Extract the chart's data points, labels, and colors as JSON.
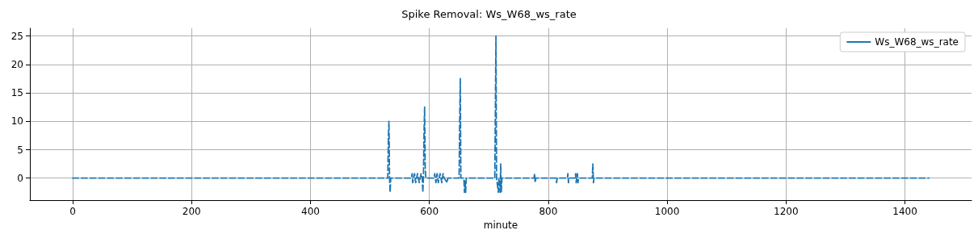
{
  "chart_data": {
    "type": "line",
    "title": "Spike Removal: Ws_W68_ws_rate",
    "xlabel": "minute",
    "x": [
      0,
      530,
      531,
      532,
      533,
      534,
      535,
      570,
      571,
      572,
      575,
      577,
      580,
      583,
      586,
      588,
      589,
      590,
      591,
      592,
      593,
      594,
      608,
      609,
      611,
      613,
      615,
      618,
      621,
      623,
      625,
      630,
      631,
      650,
      651,
      652,
      653,
      658,
      659,
      660,
      661,
      662,
      710,
      711,
      712,
      713,
      716,
      717,
      719,
      720,
      721,
      722,
      776,
      777,
      778,
      779,
      813,
      814,
      815,
      832,
      833,
      834,
      835,
      845,
      846,
      847,
      849,
      850,
      851,
      874,
      875,
      876,
      877,
      1440
    ],
    "series": [
      {
        "name": "Ws_W68_ws_rate",
        "color": "#1f77b4",
        "values": [
          0,
          0,
          7,
          10,
          0,
          -2.5,
          0,
          0,
          0.8,
          -0.8,
          0.8,
          -0.8,
          0.8,
          -0.8,
          0.8,
          0,
          -2.5,
          0,
          8,
          12.5,
          2,
          0,
          0,
          0.8,
          -0.8,
          0.8,
          -0.8,
          0.8,
          -0.8,
          0.8,
          0,
          -0.8,
          0,
          0,
          10,
          17.5,
          0,
          0,
          -2.5,
          -0.5,
          -2.5,
          0,
          0,
          12,
          25,
          0,
          -2.5,
          0,
          -2.5,
          2.5,
          -2.5,
          0,
          0,
          0.8,
          -0.8,
          0,
          0,
          -0.8,
          0,
          0,
          0.8,
          -0.8,
          0,
          0,
          0.8,
          -0.8,
          0.8,
          -0.8,
          0,
          0,
          2.5,
          -0.8,
          0,
          0
        ]
      }
    ],
    "xlim": [
      -72,
      1512
    ],
    "xticks": [
      0,
      200,
      400,
      600,
      800,
      1000,
      1200,
      1400
    ],
    "ylim": [
      -3.875,
      26.375
    ],
    "yticks": [
      0,
      5,
      10,
      15,
      20,
      25
    ],
    "grid": true,
    "legend": "top right",
    "line_style": "dashed",
    "marker": "none"
  }
}
